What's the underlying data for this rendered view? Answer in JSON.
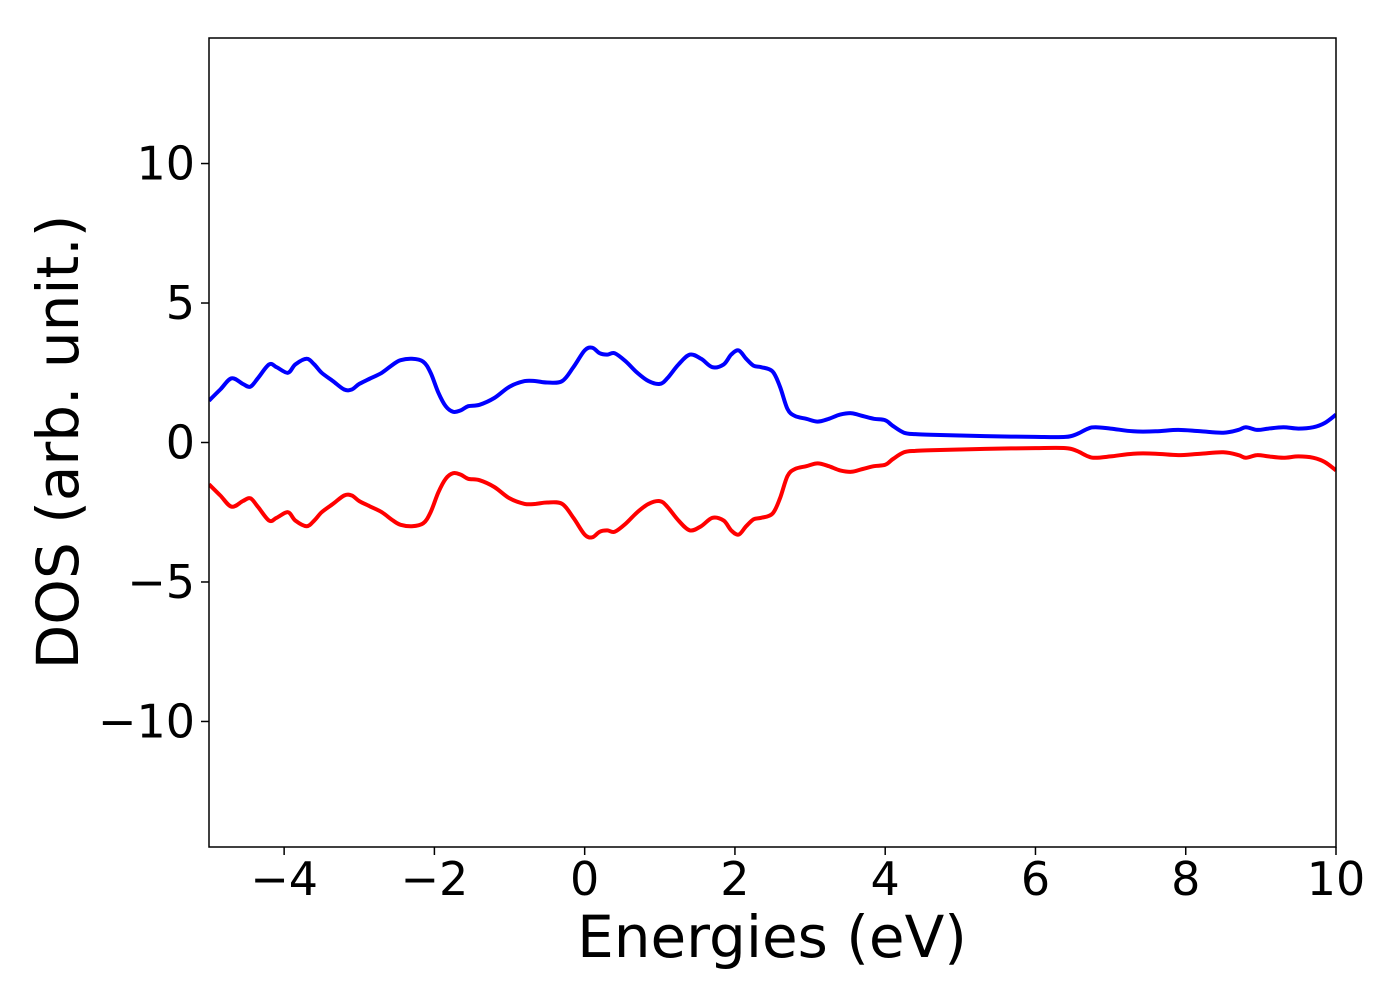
{
  "chart_data": {
    "type": "line",
    "xlabel": "Energies (eV)",
    "ylabel": "DOS (arb. unit.)",
    "xlim": [
      -5,
      10
    ],
    "ylim": [
      -14.5,
      14.5
    ],
    "xticks": [
      {
        "value": -4,
        "label": "−4"
      },
      {
        "value": -2,
        "label": "−2"
      },
      {
        "value": 0,
        "label": "0"
      },
      {
        "value": 2,
        "label": "2"
      },
      {
        "value": 4,
        "label": "4"
      },
      {
        "value": 6,
        "label": "6"
      },
      {
        "value": 8,
        "label": "8"
      },
      {
        "value": 10,
        "label": "10"
      }
    ],
    "yticks": [
      {
        "value": 10,
        "label": "10"
      },
      {
        "value": 5,
        "label": "5"
      },
      {
        "value": 0,
        "label": "0"
      },
      {
        "value": -5,
        "label": "−5"
      },
      {
        "value": -10,
        "label": "−10"
      }
    ],
    "grid": false,
    "legend": "none",
    "series": [
      {
        "color": "#0000ff",
        "x": [
          -5.0,
          -4.85,
          -4.7,
          -4.55,
          -4.45,
          -4.35,
          -4.2,
          -4.1,
          -3.95,
          -3.85,
          -3.7,
          -3.6,
          -3.5,
          -3.35,
          -3.2,
          -3.1,
          -3.0,
          -2.85,
          -2.7,
          -2.55,
          -2.45,
          -2.3,
          -2.15,
          -2.05,
          -1.95,
          -1.85,
          -1.75,
          -1.65,
          -1.55,
          -1.4,
          -1.2,
          -1.0,
          -0.8,
          -0.65,
          -0.5,
          -0.3,
          -0.15,
          0.0,
          0.1,
          0.2,
          0.3,
          0.4,
          0.55,
          0.7,
          0.85,
          1.0,
          1.1,
          1.25,
          1.4,
          1.55,
          1.7,
          1.85,
          1.95,
          2.05,
          2.15,
          2.25,
          2.35,
          2.5,
          2.6,
          2.7,
          2.8,
          2.95,
          3.1,
          3.25,
          3.4,
          3.55,
          3.7,
          3.85,
          4.0,
          4.1,
          4.25,
          4.4,
          4.6,
          5.0,
          5.5,
          6.0,
          6.4,
          6.55,
          6.7,
          6.8,
          7.0,
          7.3,
          7.6,
          7.9,
          8.2,
          8.5,
          8.7,
          8.8,
          8.95,
          9.1,
          9.3,
          9.5,
          9.7,
          9.85,
          10.0
        ],
        "values": [
          1.5,
          1.9,
          2.3,
          2.1,
          2.0,
          2.3,
          2.8,
          2.7,
          2.5,
          2.8,
          3.0,
          2.8,
          2.5,
          2.2,
          1.9,
          1.9,
          2.1,
          2.3,
          2.5,
          2.8,
          2.95,
          3.0,
          2.9,
          2.5,
          1.8,
          1.3,
          1.1,
          1.15,
          1.3,
          1.35,
          1.6,
          2.0,
          2.2,
          2.2,
          2.15,
          2.2,
          2.7,
          3.3,
          3.4,
          3.2,
          3.15,
          3.2,
          2.9,
          2.5,
          2.2,
          2.1,
          2.3,
          2.8,
          3.15,
          3.0,
          2.7,
          2.8,
          3.15,
          3.3,
          3.0,
          2.75,
          2.7,
          2.55,
          2.0,
          1.2,
          0.95,
          0.85,
          0.75,
          0.85,
          1.0,
          1.05,
          0.95,
          0.85,
          0.8,
          0.6,
          0.35,
          0.3,
          0.28,
          0.25,
          0.22,
          0.2,
          0.2,
          0.3,
          0.5,
          0.55,
          0.5,
          0.4,
          0.4,
          0.45,
          0.4,
          0.35,
          0.45,
          0.55,
          0.45,
          0.5,
          0.55,
          0.5,
          0.55,
          0.7,
          1.0
        ]
      },
      {
        "color": "#ff0000",
        "x": [
          -5.0,
          -4.85,
          -4.7,
          -4.55,
          -4.45,
          -4.35,
          -4.2,
          -4.1,
          -3.95,
          -3.85,
          -3.7,
          -3.6,
          -3.5,
          -3.35,
          -3.2,
          -3.1,
          -3.0,
          -2.85,
          -2.7,
          -2.55,
          -2.45,
          -2.3,
          -2.15,
          -2.05,
          -1.95,
          -1.85,
          -1.75,
          -1.65,
          -1.55,
          -1.4,
          -1.2,
          -1.0,
          -0.8,
          -0.65,
          -0.5,
          -0.3,
          -0.15,
          0.0,
          0.1,
          0.2,
          0.3,
          0.4,
          0.55,
          0.7,
          0.85,
          1.0,
          1.1,
          1.25,
          1.4,
          1.55,
          1.7,
          1.85,
          1.95,
          2.05,
          2.15,
          2.25,
          2.35,
          2.5,
          2.6,
          2.7,
          2.8,
          2.95,
          3.1,
          3.25,
          3.4,
          3.55,
          3.7,
          3.85,
          4.0,
          4.1,
          4.25,
          4.4,
          4.6,
          5.0,
          5.5,
          6.0,
          6.4,
          6.55,
          6.7,
          6.8,
          7.0,
          7.3,
          7.6,
          7.9,
          8.2,
          8.5,
          8.7,
          8.8,
          8.95,
          9.1,
          9.3,
          9.5,
          9.7,
          9.85,
          10.0
        ],
        "values": [
          -1.5,
          -1.9,
          -2.3,
          -2.1,
          -2.0,
          -2.3,
          -2.8,
          -2.7,
          -2.5,
          -2.8,
          -3.0,
          -2.8,
          -2.5,
          -2.2,
          -1.9,
          -1.9,
          -2.1,
          -2.3,
          -2.5,
          -2.8,
          -2.95,
          -3.0,
          -2.9,
          -2.5,
          -1.8,
          -1.3,
          -1.1,
          -1.15,
          -1.3,
          -1.35,
          -1.6,
          -2.0,
          -2.2,
          -2.2,
          -2.15,
          -2.2,
          -2.7,
          -3.3,
          -3.4,
          -3.2,
          -3.15,
          -3.2,
          -2.9,
          -2.5,
          -2.2,
          -2.1,
          -2.3,
          -2.8,
          -3.15,
          -3.0,
          -2.7,
          -2.8,
          -3.15,
          -3.3,
          -3.0,
          -2.75,
          -2.7,
          -2.55,
          -2.0,
          -1.2,
          -0.95,
          -0.85,
          -0.75,
          -0.85,
          -1.0,
          -1.05,
          -0.95,
          -0.85,
          -0.8,
          -0.6,
          -0.35,
          -0.3,
          -0.28,
          -0.25,
          -0.22,
          -0.2,
          -0.2,
          -0.3,
          -0.5,
          -0.55,
          -0.5,
          -0.4,
          -0.4,
          -0.45,
          -0.4,
          -0.35,
          -0.45,
          -0.55,
          -0.45,
          -0.5,
          -0.55,
          -0.5,
          -0.55,
          -0.7,
          -1.0
        ]
      }
    ]
  }
}
